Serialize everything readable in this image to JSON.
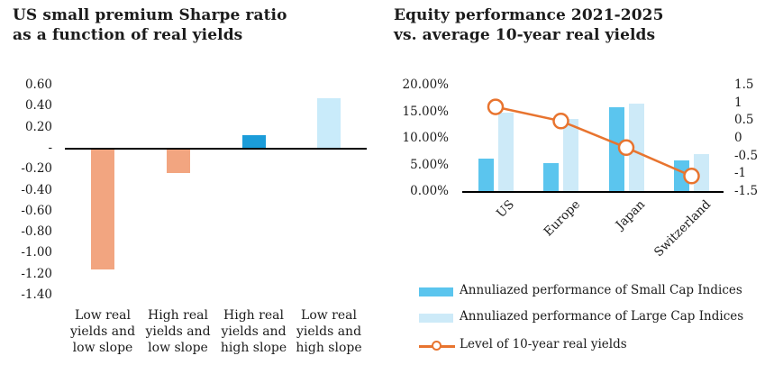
{
  "colors": {
    "text": "#1b1b1b",
    "axis_line": "#000000",
    "salmon": "#F2A580",
    "dark_blue": "#1B9CD9",
    "pale_blue": "#C9EBFA",
    "sky_blue": "#5BC5EE",
    "light_blue": "#CDEAF8",
    "orange": "#E8742F"
  },
  "charts": {
    "sharpe": {
      "title_lines": [
        "US small premium Sharpe ratio",
        "as a function of real yields"
      ]
    },
    "equity": {
      "title_lines": [
        "Equity performance 2021-2025",
        "vs. average 10-year real yields"
      ]
    }
  },
  "chart_data": [
    {
      "id": "sharpe-ratio-by-yield-regime",
      "type": "bar",
      "title": "US small premium Sharpe ratio as a function of real yields",
      "categories": [
        "Low real yields and low slope",
        "High real yields and low slope",
        "High real yields and high slope",
        "Low real yields and high slope"
      ],
      "categories_lines": [
        [
          "Low real",
          "yields and",
          "low slope"
        ],
        [
          "High real",
          "yields and",
          "low slope"
        ],
        [
          "High real",
          "yields and",
          "high slope"
        ],
        [
          "Low real",
          "yields and",
          "high slope"
        ]
      ],
      "values": [
        -1.15,
        -0.23,
        0.13,
        0.48
      ],
      "bar_colors": [
        "#F2A580",
        "#F2A580",
        "#1B9CD9",
        "#C9EBFA"
      ],
      "ylim": [
        -1.4,
        0.6
      ],
      "grid": false,
      "zero_axis": true,
      "yticks": [
        {
          "label": "0.60",
          "value": 0.6
        },
        {
          "label": "0.40",
          "value": 0.4
        },
        {
          "label": "0.20",
          "value": 0.2
        },
        {
          "label": "-",
          "value": 0
        },
        {
          "label": "-0.20",
          "value": -0.2
        },
        {
          "label": "-0.40",
          "value": -0.4
        },
        {
          "label": "-0.60",
          "value": -0.6
        },
        {
          "label": "-0.80",
          "value": -0.8
        },
        {
          "label": "-1.00",
          "value": -1.0
        },
        {
          "label": "-1.20",
          "value": -1.2
        },
        {
          "label": "-1.40",
          "value": -1.4
        }
      ]
    },
    {
      "id": "equity-performance-vs-real-yields",
      "type": "bar+line",
      "title": "Equity performance 2021-2025 vs. average 10-year real yields",
      "categories": [
        "US",
        "Europe",
        "Japan",
        "Switzerland"
      ],
      "xtick_rotation": 45,
      "legend_position": "bottom",
      "grid": false,
      "series": [
        {
          "name": "Annuliazed performance of Small Cap Indices",
          "type": "bar",
          "axis": "left",
          "unit": "%",
          "color": "#5BC5EE",
          "values": [
            6.3,
            5.5,
            16.0,
            6.0
          ]
        },
        {
          "name": "Annuliazed performance of Large Cap Indices",
          "type": "bar",
          "axis": "left",
          "unit": "%",
          "color": "#CDEAF8",
          "values": [
            14.9,
            13.8,
            16.6,
            7.1
          ]
        },
        {
          "name": "Level of 10-year real yields",
          "type": "line",
          "axis": "right",
          "marker": "open-circle",
          "color": "#E8742F",
          "values": [
            0.9,
            0.5,
            -0.25,
            -1.05
          ]
        }
      ],
      "left_axis": {
        "min": 0,
        "max": 20,
        "ticks": [
          {
            "label": "20.00%",
            "value": 20
          },
          {
            "label": "15.00%",
            "value": 15
          },
          {
            "label": "10.00%",
            "value": 10
          },
          {
            "label": "5.00%",
            "value": 5
          },
          {
            "label": "0.00%",
            "value": 0
          }
        ]
      },
      "right_axis": {
        "min": -1.5,
        "max": 1.5,
        "ticks": [
          {
            "label": "1.5",
            "value": 1.5
          },
          {
            "label": "1",
            "value": 1
          },
          {
            "label": "0.5",
            "value": 0.5
          },
          {
            "label": "0",
            "value": 0
          },
          {
            "label": "-0.5",
            "value": -0.5
          },
          {
            "label": "-1",
            "value": -1
          },
          {
            "label": "-1.5",
            "value": -1.5
          }
        ]
      }
    }
  ]
}
